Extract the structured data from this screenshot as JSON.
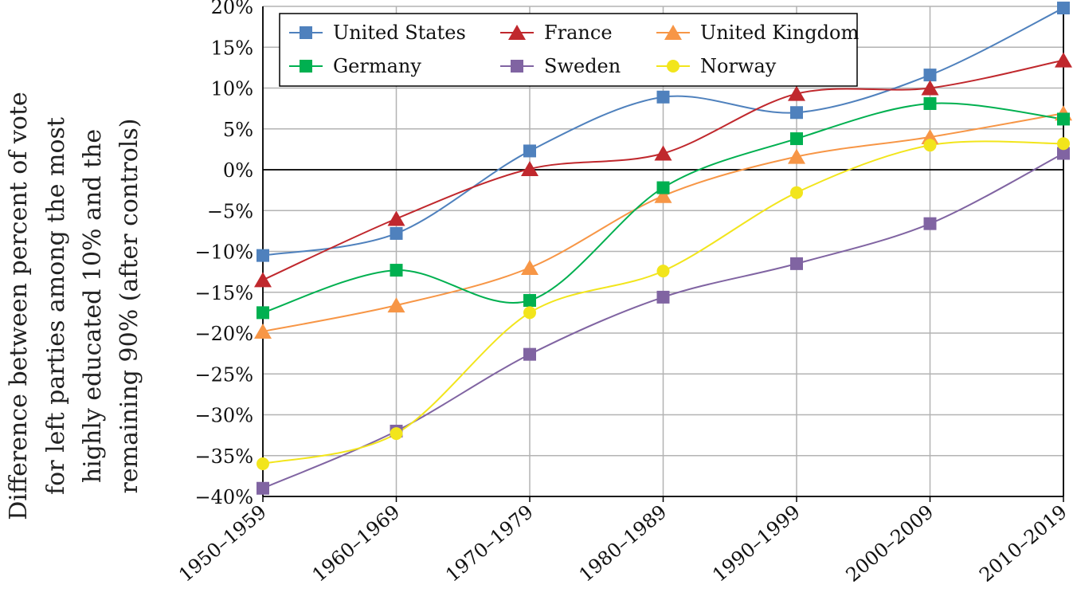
{
  "chart_data": {
    "type": "line",
    "title": "",
    "xlabel": "",
    "ylabel_lines": [
      "Difference between percent of vote",
      "for left parties among the most",
      "highly educated 10% and the",
      "remaining 90% (after controls)"
    ],
    "categories": [
      "1950–1959",
      "1960–1969",
      "1970–1979",
      "1980–1989",
      "1990–1999",
      "2000–2009",
      "2010–2019"
    ],
    "ylim": [
      -40,
      20
    ],
    "yticks": [
      20,
      15,
      10,
      5,
      0,
      -5,
      -10,
      -15,
      -20,
      -25,
      -30,
      -35,
      -40
    ],
    "ytick_labels": [
      "20%",
      "15%",
      "10%",
      "5%",
      "0%",
      "−5%",
      "−10%",
      "−15%",
      "−20%",
      "−25%",
      "−30%",
      "−35%",
      "−40%"
    ],
    "grid": true,
    "legend_position": "top",
    "series": [
      {
        "name": "United States",
        "color": "#4f81bd",
        "marker": "square",
        "values": [
          -10.5,
          -7.8,
          2.3,
          8.9,
          7.0,
          11.6,
          19.8
        ]
      },
      {
        "name": "France",
        "color": "#c0282d",
        "marker": "triangle",
        "values": [
          -13.5,
          -6.0,
          0.1,
          2.0,
          9.3,
          10.0,
          13.4
        ]
      },
      {
        "name": "United Kingdom",
        "color": "#f79646",
        "marker": "triangle",
        "values": [
          -19.8,
          -16.6,
          -12.0,
          -3.2,
          1.6,
          4.0,
          6.9
        ]
      },
      {
        "name": "Germany",
        "color": "#00b050",
        "marker": "square",
        "values": [
          -17.5,
          -12.3,
          -16.0,
          -2.2,
          3.8,
          8.1,
          6.2
        ]
      },
      {
        "name": "Sweden",
        "color": "#8064a2",
        "marker": "square",
        "values": [
          -39.0,
          -32.0,
          -22.6,
          -15.6,
          -11.5,
          -6.6,
          2.0
        ]
      },
      {
        "name": "Norway",
        "color": "#f2e51c",
        "marker": "circle",
        "values": [
          -36.0,
          -32.3,
          -17.5,
          -12.4,
          -2.8,
          3.0,
          3.2
        ]
      }
    ]
  }
}
